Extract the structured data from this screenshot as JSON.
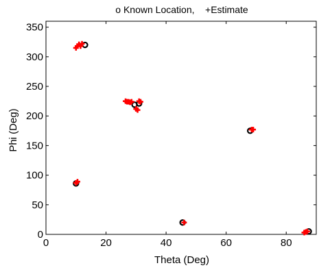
{
  "chart_data": {
    "type": "scatter",
    "title": "o Known Location,    +Estimate",
    "xlabel": "Theta (Deg)",
    "ylabel": "Phi (Deg)",
    "xlim": [
      0,
      90
    ],
    "ylim": [
      0,
      360
    ],
    "xticks": [
      0,
      20,
      40,
      60,
      80
    ],
    "yticks": [
      0,
      50,
      100,
      150,
      200,
      250,
      300,
      350
    ],
    "grid": false,
    "colors": {
      "known": "#000000",
      "estimate": "#ff0000"
    },
    "series": [
      {
        "marker": "o",
        "points": [
          [
            10,
            86
          ],
          [
            13,
            320
          ],
          [
            29.5,
            219
          ],
          [
            31,
            221
          ],
          [
            45.5,
            20
          ],
          [
            68,
            175
          ],
          [
            87.5,
            5
          ]
        ]
      },
      {
        "marker": "+",
        "points": [
          [
            10,
            315
          ],
          [
            10.5,
            318
          ],
          [
            11,
            321
          ],
          [
            11.5,
            318
          ],
          [
            12,
            322
          ],
          [
            10,
            87
          ],
          [
            10.5,
            89
          ],
          [
            26.5,
            225
          ],
          [
            27,
            224
          ],
          [
            27.5,
            224
          ],
          [
            28,
            223
          ],
          [
            28.5,
            224
          ],
          [
            30,
            212
          ],
          [
            30.5,
            210
          ],
          [
            31,
            225
          ],
          [
            31.5,
            224
          ],
          [
            46,
            20
          ],
          [
            68.5,
            177
          ],
          [
            69,
            177
          ],
          [
            86,
            3
          ],
          [
            86.5,
            4
          ],
          [
            87,
            5
          ]
        ]
      }
    ]
  }
}
